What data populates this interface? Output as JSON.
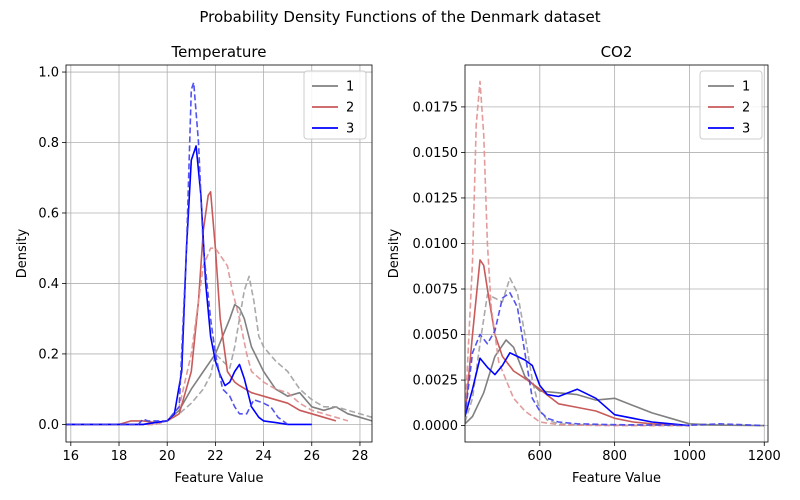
{
  "figure": {
    "suptitle": "Probability Density Functions of the Denmark dataset"
  },
  "chart_data": [
    {
      "type": "line",
      "title": "Temperature",
      "xlabel": "Feature Value",
      "ylabel": "Density",
      "xlim": [
        15.8,
        28.5
      ],
      "ylim": [
        -0.05,
        1.02
      ],
      "xticks": [
        16,
        18,
        20,
        22,
        24,
        26,
        28
      ],
      "yticks": [
        0.0,
        0.2,
        0.4,
        0.6,
        0.8,
        1.0
      ],
      "xtick_labels": [
        "16",
        "18",
        "20",
        "22",
        "24",
        "26",
        "28"
      ],
      "ytick_labels": [
        "0.0",
        "0.2",
        "0.4",
        "0.6",
        "0.8",
        "1.0"
      ],
      "grid": true,
      "legend_position": "top-right",
      "legend": [
        "1",
        "2",
        "3"
      ],
      "series": [
        {
          "name": "1",
          "color": "#808080",
          "style": "solid",
          "x": [
            15.8,
            19.0,
            20.0,
            20.5,
            21.0,
            21.5,
            22.0,
            22.3,
            22.6,
            22.8,
            23.0,
            23.2,
            23.5,
            24.0,
            24.5,
            25.0,
            25.5,
            26.0,
            26.5,
            27.0,
            27.5,
            28.0,
            28.5
          ],
          "y": [
            0,
            0,
            0.01,
            0.04,
            0.1,
            0.15,
            0.2,
            0.25,
            0.3,
            0.34,
            0.33,
            0.3,
            0.22,
            0.15,
            0.1,
            0.08,
            0.09,
            0.05,
            0.04,
            0.05,
            0.03,
            0.02,
            0.01
          ]
        },
        {
          "name": "1",
          "color": "#a0a0a0",
          "style": "dashed",
          "x": [
            15.8,
            19.5,
            20.0,
            20.5,
            21.0,
            21.5,
            21.8,
            22.0,
            22.3,
            22.6,
            22.8,
            23.0,
            23.2,
            23.4,
            23.6,
            23.8,
            24.0,
            24.5,
            25.0,
            25.5,
            26.0,
            26.5,
            27.0,
            27.5,
            28.0,
            28.5
          ],
          "y": [
            0,
            0,
            0.01,
            0.03,
            0.06,
            0.1,
            0.14,
            0.2,
            0.18,
            0.16,
            0.22,
            0.3,
            0.38,
            0.42,
            0.35,
            0.25,
            0.22,
            0.18,
            0.15,
            0.1,
            0.07,
            0.05,
            0.05,
            0.04,
            0.03,
            0.02
          ]
        },
        {
          "name": "2",
          "color": "#c85a5a",
          "style": "solid",
          "x": [
            15.8,
            18.0,
            18.5,
            19.0,
            19.5,
            20.0,
            20.5,
            21.0,
            21.3,
            21.5,
            21.7,
            21.8,
            22.0,
            22.2,
            22.5,
            22.8,
            23.0,
            23.5,
            24.0,
            24.5,
            25.0,
            25.5,
            26.0,
            26.5,
            27.0
          ],
          "y": [
            0,
            0,
            0.01,
            0.01,
            0.005,
            0.01,
            0.03,
            0.15,
            0.35,
            0.55,
            0.65,
            0.66,
            0.5,
            0.3,
            0.15,
            0.12,
            0.11,
            0.09,
            0.08,
            0.07,
            0.06,
            0.04,
            0.03,
            0.02,
            0.01
          ]
        },
        {
          "name": "2",
          "color": "#e09090",
          "style": "dashed",
          "x": [
            15.8,
            19.5,
            20.0,
            20.5,
            21.0,
            21.3,
            21.5,
            21.8,
            22.0,
            22.3,
            22.5,
            22.7,
            23.0,
            23.3,
            23.5,
            24.0,
            24.5,
            25.0,
            25.5,
            26.0,
            26.5,
            27.0,
            27.5
          ],
          "y": [
            0,
            0,
            0.01,
            0.05,
            0.2,
            0.35,
            0.45,
            0.5,
            0.5,
            0.47,
            0.45,
            0.38,
            0.3,
            0.2,
            0.15,
            0.12,
            0.1,
            0.09,
            0.06,
            0.04,
            0.03,
            0.02,
            0.01
          ]
        },
        {
          "name": "3",
          "color": "#0000ff",
          "style": "solid",
          "x": [
            15.8,
            19.0,
            19.5,
            20.0,
            20.3,
            20.6,
            20.8,
            21.0,
            21.2,
            21.4,
            21.6,
            21.8,
            22.0,
            22.2,
            22.4,
            22.6,
            22.8,
            23.0,
            23.2,
            23.5,
            23.8,
            24.0,
            24.5,
            25.0,
            25.5,
            26.0
          ],
          "y": [
            0,
            0,
            0.005,
            0.01,
            0.03,
            0.15,
            0.5,
            0.75,
            0.79,
            0.65,
            0.4,
            0.25,
            0.18,
            0.14,
            0.11,
            0.12,
            0.15,
            0.17,
            0.13,
            0.05,
            0.02,
            0.01,
            0.005,
            0,
            0,
            0
          ]
        },
        {
          "name": "3",
          "color": "#4040ee",
          "style": "dashed",
          "x": [
            15.8,
            18.8,
            19.0,
            19.2,
            19.5,
            20.0,
            20.5,
            20.8,
            21.0,
            21.1,
            21.3,
            21.5,
            21.8,
            22.0,
            22.3,
            22.6,
            22.8,
            23.0,
            23.3,
            23.6,
            24.0,
            24.3,
            24.6,
            25.0
          ],
          "y": [
            0,
            0,
            0.015,
            0.01,
            0.01,
            0.01,
            0.05,
            0.5,
            0.95,
            0.97,
            0.8,
            0.5,
            0.3,
            0.2,
            0.1,
            0.08,
            0.05,
            0.03,
            0.03,
            0.07,
            0.06,
            0.05,
            0.02,
            0
          ]
        }
      ]
    },
    {
      "type": "line",
      "title": "CO2",
      "xlabel": "Feature Value",
      "ylabel": "Density",
      "xlim": [
        400,
        1210
      ],
      "ylim": [
        -0.0009,
        0.0198
      ],
      "xticks": [
        600,
        800,
        1000,
        1200
      ],
      "yticks": [
        0.0,
        0.0025,
        0.005,
        0.0075,
        0.01,
        0.0125,
        0.015,
        0.0175
      ],
      "xtick_labels": [
        "600",
        "800",
        "1000",
        "1200"
      ],
      "ytick_labels": [
        "0.0000",
        "0.0025",
        "0.0050",
        "0.0075",
        "0.0100",
        "0.0125",
        "0.0150",
        "0.0175"
      ],
      "grid": true,
      "legend_position": "top-right",
      "legend": [
        "1",
        "2",
        "3"
      ],
      "series": [
        {
          "name": "1",
          "color": "#808080",
          "style": "solid",
          "x": [
            400,
            420,
            450,
            480,
            510,
            530,
            560,
            600,
            650,
            700,
            750,
            800,
            850,
            900,
            950,
            1000,
            1050,
            1100,
            1200
          ],
          "y": [
            0.0001,
            0.0005,
            0.0018,
            0.0038,
            0.0047,
            0.0043,
            0.0027,
            0.0019,
            0.0018,
            0.0017,
            0.0014,
            0.0015,
            0.0011,
            0.0007,
            0.0004,
            0.0001,
            5e-05,
            2e-05,
            0
          ]
        },
        {
          "name": "1",
          "color": "#a0a0a0",
          "style": "dashed",
          "x": [
            400,
            420,
            440,
            460,
            480,
            500,
            520,
            540,
            560,
            580,
            600,
            620,
            650,
            700,
            800,
            1000
          ],
          "y": [
            0.0002,
            0.0015,
            0.0045,
            0.0072,
            0.007,
            0.0068,
            0.0081,
            0.0073,
            0.005,
            0.0025,
            0.0008,
            0.0003,
            0.0001,
            5e-05,
            2e-05,
            0
          ]
        },
        {
          "name": "2",
          "color": "#c85a5a",
          "style": "solid",
          "x": [
            400,
            420,
            440,
            450,
            460,
            480,
            500,
            530,
            560,
            600,
            650,
            700,
            750,
            800,
            850,
            900,
            1000
          ],
          "y": [
            0.0005,
            0.005,
            0.0091,
            0.0088,
            0.0075,
            0.005,
            0.0038,
            0.003,
            0.0026,
            0.002,
            0.0012,
            0.001,
            0.0008,
            0.0004,
            0.0002,
            0.0001,
            0
          ]
        },
        {
          "name": "2",
          "color": "#e09090",
          "style": "dashed",
          "x": [
            400,
            420,
            430,
            440,
            450,
            460,
            470,
            490,
            510,
            530,
            560,
            600,
            650,
            700,
            800,
            1000
          ],
          "y": [
            0.0005,
            0.009,
            0.0165,
            0.0189,
            0.016,
            0.01,
            0.0065,
            0.0035,
            0.0025,
            0.0015,
            0.0008,
            0.0002,
            5e-05,
            2e-05,
            0,
            0
          ]
        },
        {
          "name": "3",
          "color": "#0000ff",
          "style": "solid",
          "x": [
            400,
            420,
            440,
            460,
            480,
            500,
            520,
            540,
            560,
            580,
            600,
            620,
            650,
            700,
            750,
            800,
            900,
            1000
          ],
          "y": [
            0.0005,
            0.002,
            0.0037,
            0.0032,
            0.0028,
            0.0033,
            0.004,
            0.0038,
            0.0036,
            0.0033,
            0.0022,
            0.0017,
            0.0016,
            0.002,
            0.0015,
            0.0006,
            0.0002,
            0
          ]
        },
        {
          "name": "3",
          "color": "#4040ee",
          "style": "dashed",
          "x": [
            400,
            420,
            440,
            460,
            480,
            500,
            520,
            540,
            560,
            580,
            600,
            620,
            650,
            700,
            800,
            1000,
            1080,
            1200
          ],
          "y": [
            0.0005,
            0.004,
            0.005,
            0.0045,
            0.0052,
            0.007,
            0.0073,
            0.0065,
            0.004,
            0.0015,
            0.0008,
            0.0004,
            0.0002,
            0.0001,
            5e-05,
            2e-05,
            0.0001,
            0
          ]
        }
      ]
    }
  ]
}
